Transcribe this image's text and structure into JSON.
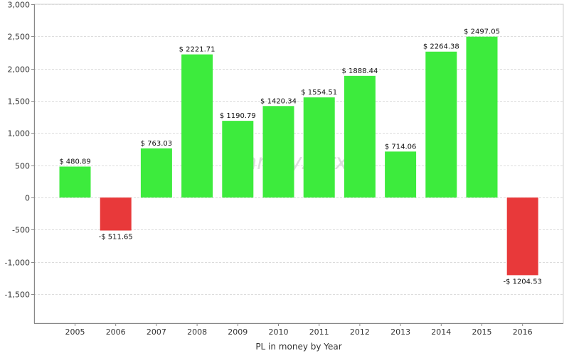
{
  "chart_data": {
    "type": "bar",
    "title": "",
    "xlabel": "PL in money by Year",
    "ylabel": "",
    "ylim": [
      -1950,
      3000
    ],
    "yticks": [
      3000,
      2500,
      2000,
      1500,
      1000,
      500,
      0,
      -500,
      -1000,
      -1500
    ],
    "ytick_labels": [
      "3,000",
      "2,500",
      "2,000",
      "1,500",
      "1,000",
      "500",
      "0",
      "-500",
      "-1,000",
      "-1,500"
    ],
    "grid": true,
    "categories": [
      "2005",
      "2006",
      "2007",
      "2008",
      "2009",
      "2010",
      "2011",
      "2012",
      "2013",
      "2014",
      "2015",
      "2016"
    ],
    "values": [
      480.89,
      -511.65,
      763.03,
      2221.71,
      1190.79,
      1420.34,
      1554.51,
      1888.44,
      714.06,
      2264.38,
      2497.05,
      -1204.53
    ],
    "data_labels": [
      "$ 480.89",
      "-$ 511.65",
      "$ 763.03",
      "$ 2221.71",
      "$ 1190.79",
      "$ 1420.34",
      "$ 1554.51",
      "$ 1888.44",
      "$ 714.06",
      "$ 2264.38",
      "$ 2497.05",
      "-$ 1204.53"
    ],
    "colors": {
      "positive": "#3deb3d",
      "negative": "#e8393a",
      "grid": "#dcdcdc",
      "axis": "#888888"
    },
    "watermark": "analyzerxl"
  }
}
